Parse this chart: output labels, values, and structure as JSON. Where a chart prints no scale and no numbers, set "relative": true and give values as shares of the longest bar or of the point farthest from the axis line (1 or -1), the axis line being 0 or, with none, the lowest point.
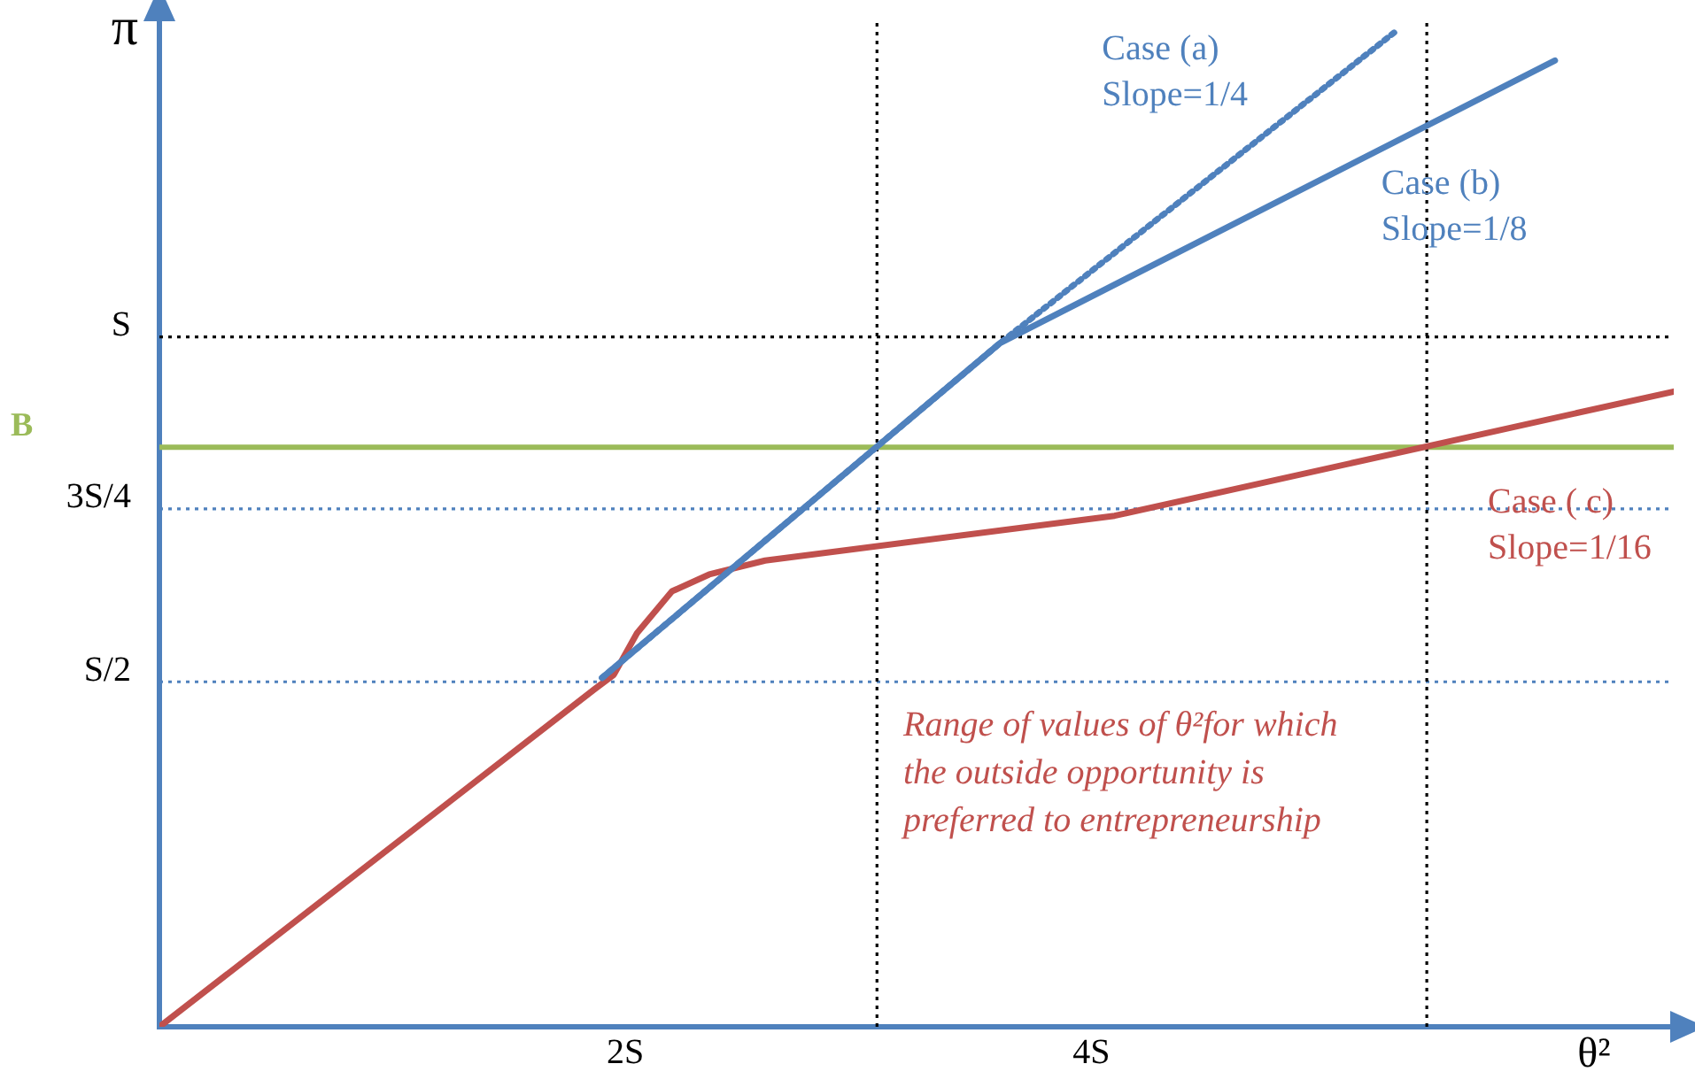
{
  "chart_data": {
    "type": "line",
    "ylabel": "π",
    "xlabel": "θ²",
    "xlim": [
      0,
      6.5
    ],
    "relative": true,
    "xticks": [
      {
        "value": 2,
        "label": "2S"
      },
      {
        "value": 4,
        "label": "4S"
      }
    ],
    "grid": false,
    "legend": false,
    "marker": "none",
    "series": [
      {
        "name": "Case (a) Slope=1/4",
        "color": "#4f81bd",
        "line_style": "dotted",
        "x": [
          1.9,
          3.61,
          5.3
        ],
        "values": [
          0.351,
          0.688,
          1
        ]
      },
      {
        "name": "Case (b) Slope=1/8",
        "color": "#4f81bd",
        "line_style": "solid",
        "x": [
          1.9,
          3.61,
          5.99
        ],
        "values": [
          0.351,
          0.688,
          0.972
        ]
      },
      {
        "name": "Case ( c) Slope=1/16",
        "color": "#c0504d",
        "line_style": "solid",
        "x": [
          0,
          1.87,
          1.95,
          2.05,
          2.2,
          2.36,
          2.6,
          4.1,
          6.5
        ],
        "values": [
          0,
          0.34,
          0.354,
          0.396,
          0.438,
          0.455,
          0.469,
          0.514,
          0.639
        ]
      }
    ],
    "ref_lines": [
      {
        "axis": "y",
        "value": 0.694,
        "label": "S",
        "color": "#000000",
        "line_style": "dotted"
      },
      {
        "axis": "y",
        "value": 0.583,
        "label": "B",
        "color": "#9bbb59",
        "line_style": "solid"
      },
      {
        "axis": "y",
        "value": 0.521,
        "label": "3S/4",
        "color": "#4f81bd",
        "line_style": "dotted"
      },
      {
        "axis": "y",
        "value": 0.347,
        "label": "S/2",
        "color": "#4f81bd",
        "line_style": "dotted"
      },
      {
        "axis": "x",
        "value": 3.08,
        "color": "#000000",
        "line_style": "dotted"
      },
      {
        "axis": "x",
        "value": 5.44,
        "color": "#000000",
        "line_style": "dotted"
      }
    ],
    "annotations": [
      "Range of values of θ²for which the outside opportunity is preferred to entrepreneurship"
    ]
  }
}
